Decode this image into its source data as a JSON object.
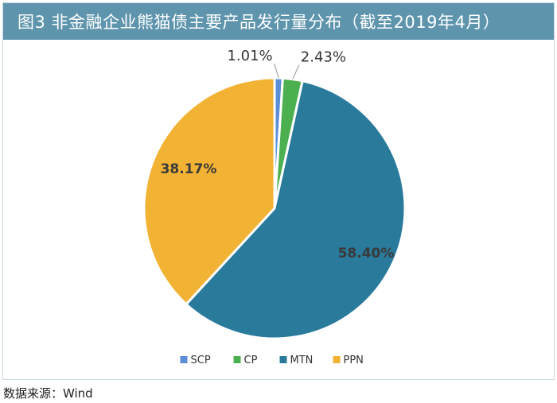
{
  "figure": {
    "title": "图3  非金融企业熊猫债主要产品发行量分布（截至2019年4月）",
    "source": "数据来源：Wind"
  },
  "colors": {
    "title_bar": "#5e95ad",
    "SCP": "#5b8ed6",
    "CP": "#4caf50",
    "MTN": "#2a7a9c",
    "PPN": "#f2b233"
  },
  "chart_data": {
    "type": "pie",
    "title": "图3  非金融企业熊猫债主要产品发行量分布（截至2019年4月）",
    "unit": "%",
    "legend_position": "bottom",
    "slices": [
      {
        "name": "SCP",
        "value": 1.01,
        "label": "1.01%",
        "label_placement": "outside"
      },
      {
        "name": "CP",
        "value": 2.43,
        "label": "2.43%",
        "label_placement": "outside"
      },
      {
        "name": "MTN",
        "value": 58.4,
        "label": "58.40%",
        "label_placement": "inside"
      },
      {
        "name": "PPN",
        "value": 38.17,
        "label": "38.17%",
        "label_placement": "inside"
      }
    ]
  }
}
